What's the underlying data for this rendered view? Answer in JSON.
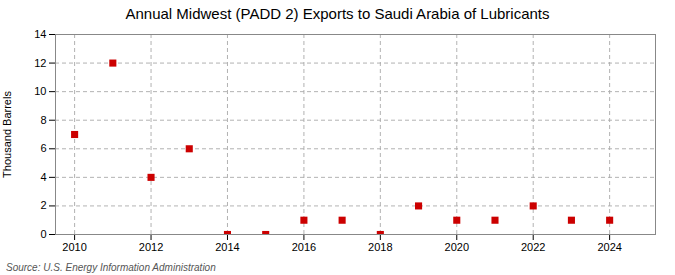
{
  "chart_data": {
    "type": "scatter",
    "title": "Annual Midwest (PADD 2) Exports to Saudi Arabia of Lubricants",
    "ylabel": "Thousand Barrels",
    "source": "Source: U.S. Energy Information Administration",
    "x": [
      2010,
      2011,
      2012,
      2013,
      2014,
      2015,
      2016,
      2017,
      2018,
      2019,
      2020,
      2021,
      2022,
      2023,
      2024
    ],
    "values": [
      7,
      12,
      4,
      6,
      0,
      0,
      1,
      1,
      0,
      2,
      1,
      1,
      2,
      1,
      1
    ],
    "color": "#cc0000",
    "marker": "square",
    "xlim": [
      2009.5,
      2025.2
    ],
    "ylim": [
      0,
      14
    ],
    "xticks": [
      2010,
      2012,
      2014,
      2016,
      2018,
      2020,
      2022,
      2024
    ],
    "yticks": [
      0,
      2,
      4,
      6,
      8,
      10,
      12,
      14
    ],
    "grid": true
  }
}
